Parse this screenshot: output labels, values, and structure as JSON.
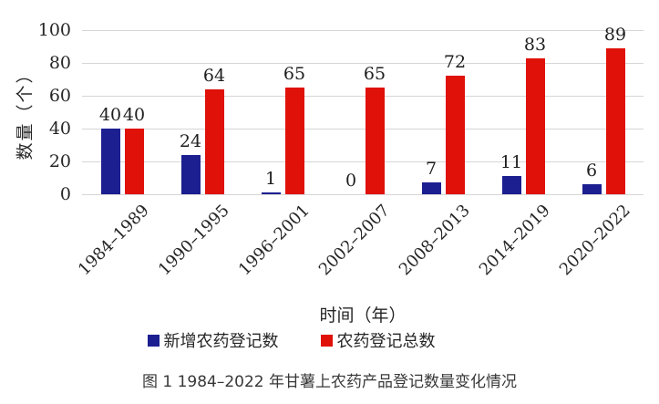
{
  "figure": {
    "caption": "图 1 1984–2022 年甘薯上农药产品登记数量变化情况"
  },
  "chart_data": {
    "type": "bar",
    "title": "",
    "xlabel": "时间（年）",
    "ylabel": "数量（个）",
    "categories": [
      "1984–1989",
      "1990–1995",
      "1996–2001",
      "2002–2007",
      "2008–2013",
      "2014–2019",
      "2020–2022"
    ],
    "series": [
      {
        "name": "新增农药登记数",
        "color": "#1c1f8f",
        "values": [
          40,
          24,
          1,
          0,
          7,
          11,
          6
        ]
      },
      {
        "name": "农药登记总数",
        "color": "#e01108",
        "values": [
          40,
          64,
          65,
          65,
          72,
          83,
          89
        ]
      }
    ],
    "ylim": [
      0,
      100
    ],
    "yticks": [
      0,
      20,
      40,
      60,
      80,
      100
    ],
    "grid": true,
    "gridline_color": "#d6d6d6",
    "bar_labels": true,
    "legend_position": "bottom"
  }
}
